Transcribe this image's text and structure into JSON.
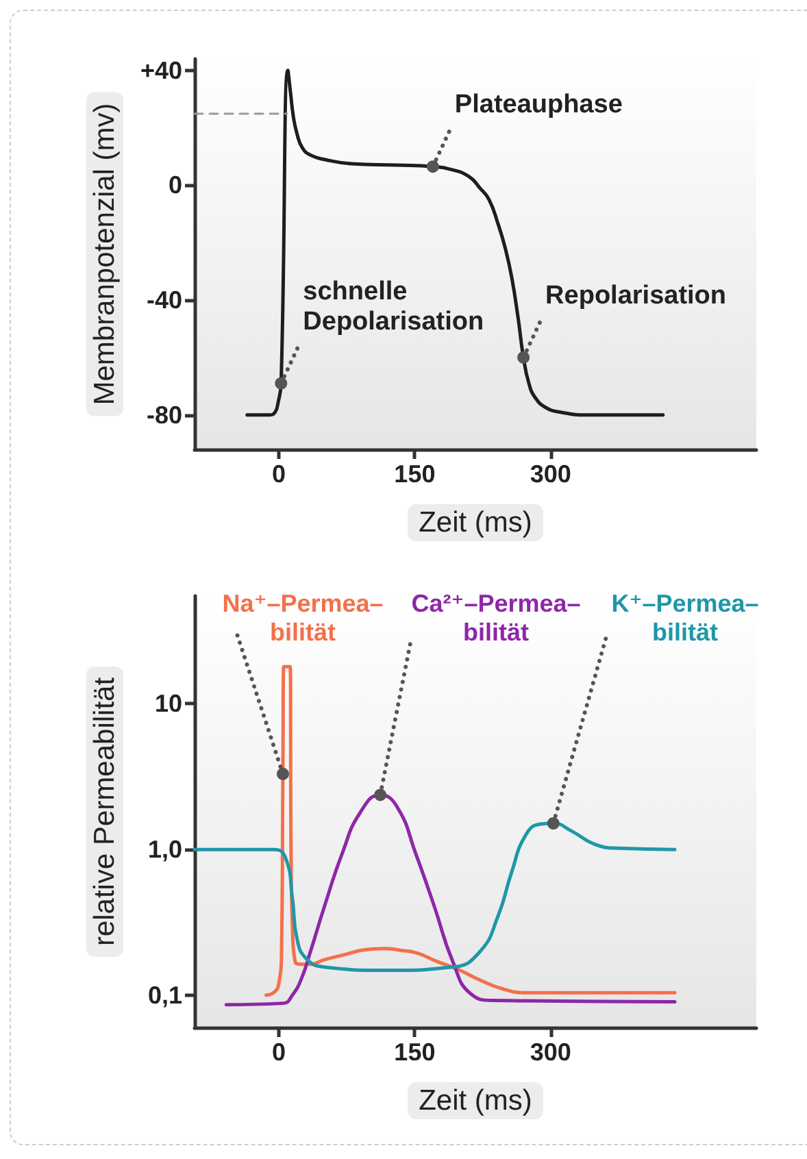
{
  "chart_data": [
    {
      "type": "line",
      "xlabel": "Zeit (ms)",
      "ylabel": "Membranpotenzial (mv)",
      "xlim": [
        -93,
        527
      ],
      "xticks": [
        0,
        150,
        300
      ],
      "ylim": [
        -92,
        44
      ],
      "yticks": [
        {
          "value": 40,
          "label": "+40"
        },
        0,
        -40,
        -80
      ],
      "series": [
        {
          "color": "#1e1e1e",
          "x": [
            -35,
            -10,
            -4,
            -1,
            2.5,
            10,
            13,
            16,
            20,
            26,
            35,
            50,
            80,
            130,
            170,
            190,
            210,
            222,
            232,
            242,
            250,
            257,
            264,
            270,
            276,
            283,
            295,
            310,
            340,
            424
          ],
          "values": [
            -80,
            -80,
            -79,
            -76,
            -69,
            40,
            32,
            24,
            18,
            13,
            10.5,
            9,
            7.5,
            7,
            6.5,
            5.5,
            3,
            -1,
            -5,
            -13.5,
            -22,
            -32,
            -46,
            -60,
            -69,
            -74,
            -77.5,
            -79,
            -80,
            -80
          ]
        }
      ],
      "ref_lines": [
        {
          "axis": "y",
          "value": 25,
          "color": "#9a9a9a",
          "line_style": "dashed"
        }
      ],
      "annotations": [
        {
          "text": "schnelle Depolarisation",
          "x": 2.5,
          "y": -69
        },
        {
          "text": "Plateauphase",
          "x": 170,
          "y": 6.5
        },
        {
          "text": "Repolarisation",
          "x": 270,
          "y": -60
        }
      ]
    },
    {
      "type": "line",
      "xlabel": "Zeit (ms)",
      "ylabel": "relative Permeabilität",
      "log": "y",
      "xlim": [
        -93,
        527
      ],
      "xticks": [
        0,
        150,
        300
      ],
      "ylim": [
        0.06,
        55
      ],
      "yticks": [
        {
          "value": 0.1,
          "label": "0,1"
        },
        {
          "value": 1,
          "label": "1,0"
        },
        10
      ],
      "series": [
        {
          "name": "Na⁺–Permea–\nbilität",
          "color": "#f4704a",
          "x": [
            -14,
            -5,
            0,
            3,
            4.5,
            5.5,
            12.5,
            13.5,
            15,
            18,
            25,
            35,
            50,
            70,
            95,
            116,
            135,
            152,
            175,
            197,
            222,
            248,
            273,
            437
          ],
          "values": [
            0.1,
            0.105,
            0.12,
            0.2,
            3.3,
            18,
            18,
            1,
            0.3,
            0.17,
            0.163,
            0.163,
            0.175,
            0.188,
            0.205,
            0.209,
            0.203,
            0.195,
            0.17,
            0.151,
            0.127,
            0.11,
            0.104,
            0.104
          ]
        },
        {
          "name": "Ca²⁺–Permea–\nbilität",
          "color": "#8e27a8",
          "x": [
            -58,
            5,
            15,
            25,
            35,
            50,
            70,
            90,
            112,
            131,
            151,
            172,
            192,
            212,
            237,
            437
          ],
          "values": [
            0.086,
            0.088,
            0.1,
            0.13,
            0.2,
            0.4,
            0.94,
            1.8,
            2.37,
            1.94,
            0.94,
            0.4,
            0.17,
            0.102,
            0.092,
            0.09
          ]
        },
        {
          "name": "K⁺–Permea–\nbilität",
          "color": "#1f97a9",
          "x": [
            -93,
            -5,
            7.6,
            15,
            20,
            30,
            50,
            120,
            192,
            222,
            242,
            257,
            272,
            288,
            303,
            323,
            348,
            374,
            437
          ],
          "values": [
            1,
            1,
            0.87,
            0.46,
            0.245,
            0.179,
            0.156,
            0.148,
            0.156,
            0.199,
            0.35,
            0.7,
            1.24,
            1.49,
            1.51,
            1.34,
            1.09,
            1.02,
            1
          ]
        }
      ]
    }
  ]
}
